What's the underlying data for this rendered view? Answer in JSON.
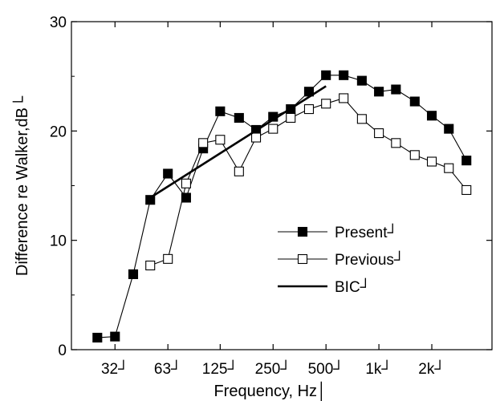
{
  "chart_data": {
    "type": "line",
    "xlabel": "Frequency, Hz│",
    "ylabel": "Difference re Walker,dB└",
    "x_scale": "log",
    "x_ticks": [
      {
        "value": 31.5,
        "label": "32┘"
      },
      {
        "value": 63,
        "label": "63┘"
      },
      {
        "value": 125,
        "label": "125┘"
      },
      {
        "value": 250,
        "label": "250┘"
      },
      {
        "value": 500,
        "label": "500┘"
      },
      {
        "value": 1000,
        "label": "1k┘"
      },
      {
        "value": 2000,
        "label": "2k┘"
      }
    ],
    "y_ticks": [
      {
        "value": 0,
        "label": "0"
      },
      {
        "value": 10,
        "label": "10"
      },
      {
        "value": 20,
        "label": "20"
      },
      {
        "value": 30,
        "label": "30"
      }
    ],
    "xlim": [
      17.8,
      4400
    ],
    "ylim": [
      0,
      30
    ],
    "grid": false,
    "legend_position": "lower-right",
    "series": [
      {
        "name": "Present┘",
        "marker": "filled-square",
        "color": "#000000",
        "points": [
          [
            25,
            1.1
          ],
          [
            31.5,
            1.2
          ],
          [
            40,
            6.9
          ],
          [
            50,
            13.7
          ],
          [
            63,
            16.1
          ],
          [
            80,
            13.9
          ],
          [
            100,
            18.4
          ],
          [
            125,
            21.8
          ],
          [
            160,
            21.2
          ],
          [
            200,
            20.1
          ],
          [
            250,
            21.3
          ],
          [
            315,
            22.0
          ],
          [
            400,
            23.6
          ],
          [
            500,
            25.1
          ],
          [
            630,
            25.1
          ],
          [
            800,
            24.6
          ],
          [
            1000,
            23.6
          ],
          [
            1250,
            23.8
          ],
          [
            1600,
            22.7
          ],
          [
            2000,
            21.4
          ],
          [
            2500,
            20.2
          ],
          [
            3150,
            17.3
          ]
        ]
      },
      {
        "name": "Previous┘",
        "marker": "open-square",
        "color": "#000000",
        "points": [
          [
            50,
            7.7
          ],
          [
            63,
            8.3
          ],
          [
            80,
            15.2
          ],
          [
            100,
            18.9
          ],
          [
            125,
            19.2
          ],
          [
            160,
            16.3
          ],
          [
            200,
            19.4
          ],
          [
            250,
            20.2
          ],
          [
            315,
            21.2
          ],
          [
            400,
            22.0
          ],
          [
            500,
            22.5
          ],
          [
            630,
            23.0
          ],
          [
            800,
            21.1
          ],
          [
            1000,
            19.8
          ],
          [
            1250,
            18.9
          ],
          [
            1600,
            17.8
          ],
          [
            2000,
            17.2
          ],
          [
            2500,
            16.6
          ],
          [
            3150,
            14.6
          ]
        ]
      },
      {
        "name": "BIC┘",
        "marker": "none",
        "color": "#000000",
        "points": [
          [
            50,
            13.9
          ],
          [
            500,
            24.1
          ]
        ]
      }
    ]
  }
}
